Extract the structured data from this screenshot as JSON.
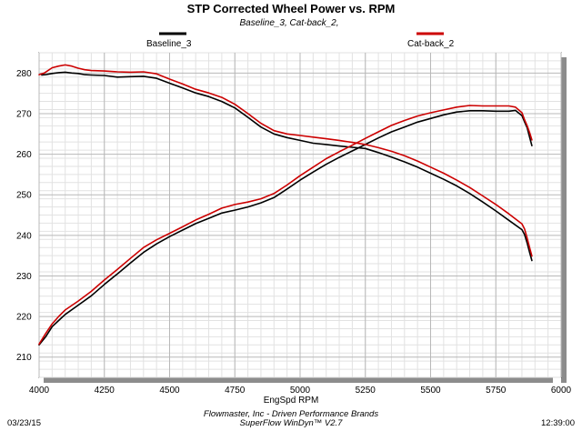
{
  "chart_data": {
    "type": "line",
    "title": "STP Corrected Wheel Power vs. RPM",
    "subtitle": "Baseline_3, Cat-back_2,",
    "xlabel": "EngSpd RPM",
    "ylabel": "",
    "xlim": [
      4000,
      6000
    ],
    "ylim": [
      205,
      285
    ],
    "x_ticks": [
      4000,
      4250,
      4500,
      4750,
      5000,
      5250,
      5500,
      5750,
      6000
    ],
    "y_ticks": [
      210,
      220,
      230,
      240,
      250,
      260,
      270,
      280
    ],
    "grid": true,
    "legend_position": "top",
    "series": [
      {
        "name": "Baseline_3",
        "color": "#000000",
        "curves": [
          {
            "x": [
              4010,
              4025,
              4050,
              4075,
              4100,
              4125,
              4150,
              4175,
              4200,
              4250,
              4300,
              4350,
              4400,
              4450,
              4500,
              4550,
              4600,
              4650,
              4700,
              4750,
              4800,
              4850,
              4900,
              4950,
              5000,
              5050,
              5100,
              5150,
              5200,
              5250,
              5300,
              5350,
              5400,
              5450,
              5500,
              5550,
              5600,
              5650,
              5700,
              5750,
              5800,
              5850,
              5860,
              5870,
              5880,
              5888
            ],
            "y": [
              279.5,
              279.6,
              279.9,
              280.1,
              280.2,
              280.0,
              279.9,
              279.6,
              279.5,
              279.4,
              279.0,
              279.1,
              279.2,
              278.7,
              277.5,
              276.3,
              275.1,
              274.2,
              273.0,
              271.4,
              269.1,
              266.7,
              265.0,
              264.1,
              263.4,
              262.7,
              262.4,
              262.0,
              261.7,
              261.4,
              260.4,
              259.3,
              258.1,
              256.8,
              255.3,
              253.8,
              252.2,
              250.3,
              248.2,
              246.0,
              243.7,
              241.4,
              240.2,
              238.1,
              235.6,
              233.8
            ]
          },
          {
            "x": [
              4000,
              4025,
              4050,
              4075,
              4100,
              4150,
              4200,
              4250,
              4300,
              4350,
              4400,
              4450,
              4500,
              4550,
              4600,
              4650,
              4700,
              4750,
              4800,
              4850,
              4900,
              4950,
              5000,
              5050,
              5100,
              5150,
              5200,
              5250,
              5300,
              5350,
              5400,
              5450,
              5500,
              5550,
              5600,
              5650,
              5700,
              5750,
              5800,
              5825,
              5850,
              5860,
              5870,
              5880,
              5888
            ],
            "y": [
              213.0,
              215.0,
              217.5,
              219.0,
              220.5,
              222.8,
              225.1,
              227.9,
              230.5,
              233.2,
              235.8,
              237.9,
              239.7,
              241.3,
              242.9,
              244.2,
              245.5,
              246.2,
              247.0,
              248.0,
              249.3,
              251.4,
              253.6,
              255.6,
              257.5,
              259.2,
              260.8,
              262.4,
              264.0,
              265.5,
              266.7,
              267.9,
              268.8,
              269.7,
              270.4,
              270.7,
              270.7,
              270.6,
              270.6,
              270.8,
              269.5,
              268.0,
              266.5,
              264.0,
              262.1
            ]
          }
        ]
      },
      {
        "name": "Cat-back_2",
        "color": "#cc0000",
        "curves": [
          {
            "x": [
              4000,
              4020,
              4050,
              4075,
              4100,
              4125,
              4150,
              4175,
              4200,
              4250,
              4300,
              4350,
              4400,
              4450,
              4500,
              4550,
              4600,
              4650,
              4700,
              4750,
              4800,
              4850,
              4900,
              4950,
              5000,
              5050,
              5100,
              5150,
              5200,
              5250,
              5300,
              5350,
              5400,
              5450,
              5500,
              5550,
              5600,
              5650,
              5700,
              5750,
              5800,
              5850,
              5860,
              5870,
              5880,
              5888
            ],
            "y": [
              279.6,
              280.0,
              281.3,
              281.7,
              282.0,
              281.7,
              281.2,
              280.8,
              280.6,
              280.5,
              280.3,
              280.2,
              280.3,
              279.8,
              278.5,
              277.3,
              276.0,
              275.1,
              274.0,
              272.3,
              270.0,
              267.6,
              265.8,
              265.0,
              264.6,
              264.2,
              263.8,
              263.4,
              262.9,
              262.4,
              261.6,
              260.7,
              259.6,
              258.3,
              256.8,
              255.3,
              253.6,
              251.8,
              249.7,
              247.6,
              245.3,
              242.8,
              241.6,
              239.3,
              236.8,
              234.9
            ]
          },
          {
            "x": [
              4000,
              4025,
              4050,
              4075,
              4100,
              4150,
              4200,
              4250,
              4300,
              4350,
              4400,
              4450,
              4500,
              4550,
              4600,
              4650,
              4700,
              4750,
              4800,
              4850,
              4900,
              4950,
              5000,
              5050,
              5100,
              5150,
              5200,
              5250,
              5300,
              5350,
              5400,
              5450,
              5500,
              5550,
              5600,
              5650,
              5700,
              5750,
              5800,
              5825,
              5850,
              5860,
              5870,
              5880,
              5888
            ],
            "y": [
              213.2,
              215.8,
              218.2,
              220.0,
              221.6,
              223.8,
              226.2,
              229.0,
              231.6,
              234.3,
              237.0,
              238.9,
              240.5,
              242.1,
              243.8,
              245.2,
              246.7,
              247.6,
              248.2,
              249.0,
              250.3,
              252.4,
              254.7,
              256.8,
              258.9,
              260.6,
              262.2,
              263.9,
              265.5,
              267.1,
              268.3,
              269.4,
              270.2,
              270.9,
              271.6,
              272.0,
              271.9,
              271.9,
              271.9,
              271.6,
              270.2,
              268.5,
              267.0,
              265.2,
              263.5
            ]
          }
        ]
      }
    ]
  },
  "footer": {
    "date": "03/23/15",
    "company": "Flowmaster, Inc - Driven Performance Brands",
    "software": "SuperFlow WinDyn™ V2.7",
    "time": "12:39:00"
  }
}
